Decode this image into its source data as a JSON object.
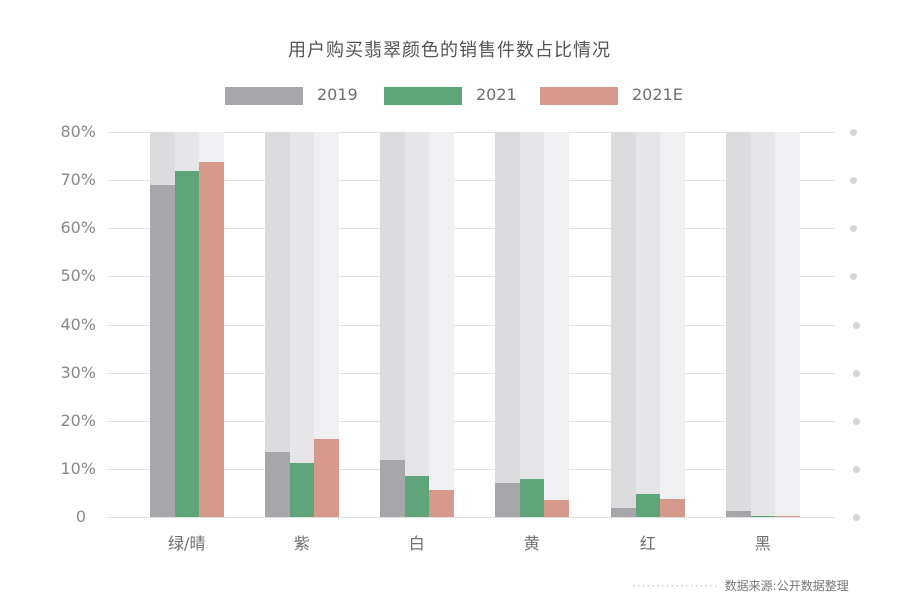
{
  "title": "用户购买翡翠颜色的销售件数占比情况",
  "legend": [
    {
      "label": "2019",
      "color": "#a7a6ab",
      "bg": "#dcdcde"
    },
    {
      "label": "2021",
      "color": "#5fa47a",
      "bg": "#e6e6e8"
    },
    {
      "label": "2021E",
      "color": "#d59a8c",
      "bg": "#f0f0f2"
    }
  ],
  "y_ticks": [
    "80%",
    "70%",
    "60%",
    "50%",
    "40%",
    "30%",
    "20%",
    "10%",
    "0"
  ],
  "source": "数据来源:公开数据整理",
  "chart_data": {
    "type": "bar",
    "title": "用户购买翡翠颜色的销售件数占比情况",
    "xlabel": "",
    "ylabel": "",
    "ylim": [
      0,
      80
    ],
    "y_unit": "%",
    "grid": true,
    "legend_position": "top",
    "categories": [
      "绿/晴",
      "紫",
      "白",
      "黄",
      "红",
      "黑"
    ],
    "series": [
      {
        "name": "2019",
        "values": [
          69.0,
          13.5,
          11.9,
          7.0,
          1.8,
          1.2
        ]
      },
      {
        "name": "2021",
        "values": [
          71.8,
          11.3,
          8.5,
          8.0,
          4.8,
          0.3
        ]
      },
      {
        "name": "2021E",
        "values": [
          73.8,
          16.2,
          5.6,
          3.6,
          3.8,
          0.3
        ]
      }
    ],
    "annotations": [
      "数据来源:公开数据整理"
    ]
  }
}
